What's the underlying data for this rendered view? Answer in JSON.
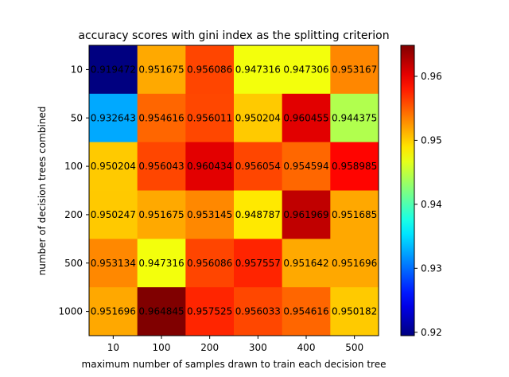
{
  "chart_data": {
    "type": "heatmap",
    "title": "accuracy scores with gini index as the splitting criterion",
    "xlabel": "maximum number of samples drawn to train each decision tree",
    "ylabel": "number of decision trees combined",
    "x_categories": [
      "10",
      "100",
      "200",
      "300",
      "400",
      "500"
    ],
    "y_categories": [
      "10",
      "50",
      "100",
      "200",
      "500",
      "1000"
    ],
    "values": [
      [
        0.919472,
        0.951675,
        0.956086,
        0.947316,
        0.947306,
        0.953167
      ],
      [
        0.932643,
        0.954616,
        0.956011,
        0.950204,
        0.960455,
        0.944375
      ],
      [
        0.950204,
        0.956043,
        0.960434,
        0.956054,
        0.954594,
        0.958985
      ],
      [
        0.950247,
        0.951675,
        0.953145,
        0.948787,
        0.961969,
        0.951685
      ],
      [
        0.953134,
        0.947316,
        0.956086,
        0.957557,
        0.951642,
        0.951696
      ],
      [
        0.951696,
        0.964845,
        0.957525,
        0.956033,
        0.954616,
        0.950182
      ]
    ],
    "labels": [
      [
        "0.919472",
        "0.951675",
        "0.956086",
        "0.947316",
        "0.947306",
        "0.953167"
      ],
      [
        "0.932643",
        "0.954616",
        "0.956011",
        "0.950204",
        "0.960455",
        "0.944375"
      ],
      [
        "0.950204",
        "0.956043",
        "0.960434",
        "0.956054",
        "0.954594",
        "0.958985"
      ],
      [
        "0.950247",
        "0.951675",
        "0.953145",
        "0.948787",
        "0.961969",
        "0.951685"
      ],
      [
        "0.953134",
        "0.947316",
        "0.956086",
        "0.957557",
        "0.951642",
        "0.951696"
      ],
      [
        "0.951696",
        "0.964845",
        "0.957525",
        "0.956033",
        "0.954616",
        "0.950182"
      ]
    ],
    "colorscale": "jet",
    "vmin": 0.919472,
    "vmax": 0.964845,
    "colorbar_ticks": [
      0.92,
      0.93,
      0.94,
      0.95,
      0.96
    ],
    "colorbar_tick_labels": [
      "0.92",
      "0.93",
      "0.94",
      "0.95",
      "0.96"
    ],
    "grid": false
  }
}
